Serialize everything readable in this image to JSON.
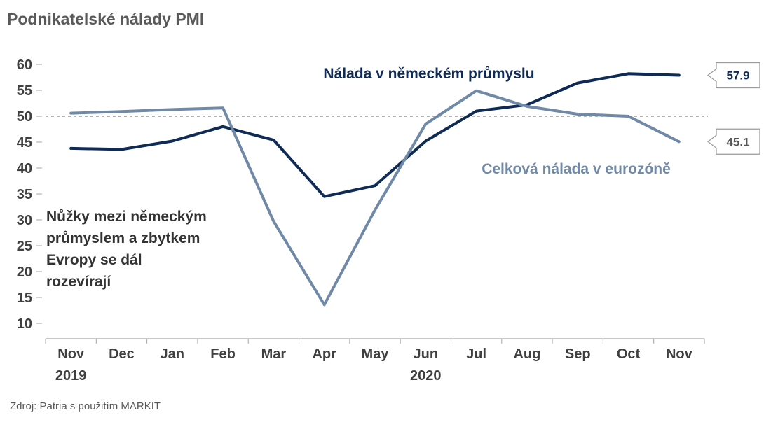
{
  "chart_data": {
    "type": "line",
    "title": "Podnikatelské nálady PMI",
    "source": "Zdroj: Patria s použitím MARKIT",
    "categories": [
      "Nov",
      "Dec",
      "Jan",
      "Feb",
      "Mar",
      "Apr",
      "May",
      "Jun",
      "Jul",
      "Aug",
      "Sep",
      "Oct",
      "Nov"
    ],
    "year_labels": [
      {
        "label": "2019",
        "at": "Nov"
      },
      {
        "label": "2020",
        "at": "Jun"
      }
    ],
    "yticks": [
      10,
      15,
      20,
      25,
      30,
      35,
      40,
      45,
      50,
      55,
      60
    ],
    "ylim": [
      7,
      62
    ],
    "reference_line": 50,
    "grid": false,
    "series": [
      {
        "name": "Nálada v německém průmyslu",
        "color": "#0e2a55",
        "values": [
          43.8,
          43.6,
          45.2,
          48.0,
          45.4,
          34.5,
          36.6,
          45.2,
          51.0,
          52.2,
          56.4,
          58.2,
          57.9
        ],
        "end_label": "57.9"
      },
      {
        "name": "Celková nálada v eurozóně",
        "color": "#6f89a6",
        "values": [
          50.6,
          50.9,
          51.3,
          51.6,
          29.7,
          13.6,
          31.9,
          48.5,
          54.9,
          51.9,
          50.4,
          50.0,
          45.1
        ],
        "end_label": "45.1"
      }
    ],
    "annotation": [
      "Nůžky mezi německým",
      "průmyslem a zbytkem",
      "Evropy se dál",
      "rozevírají"
    ]
  }
}
